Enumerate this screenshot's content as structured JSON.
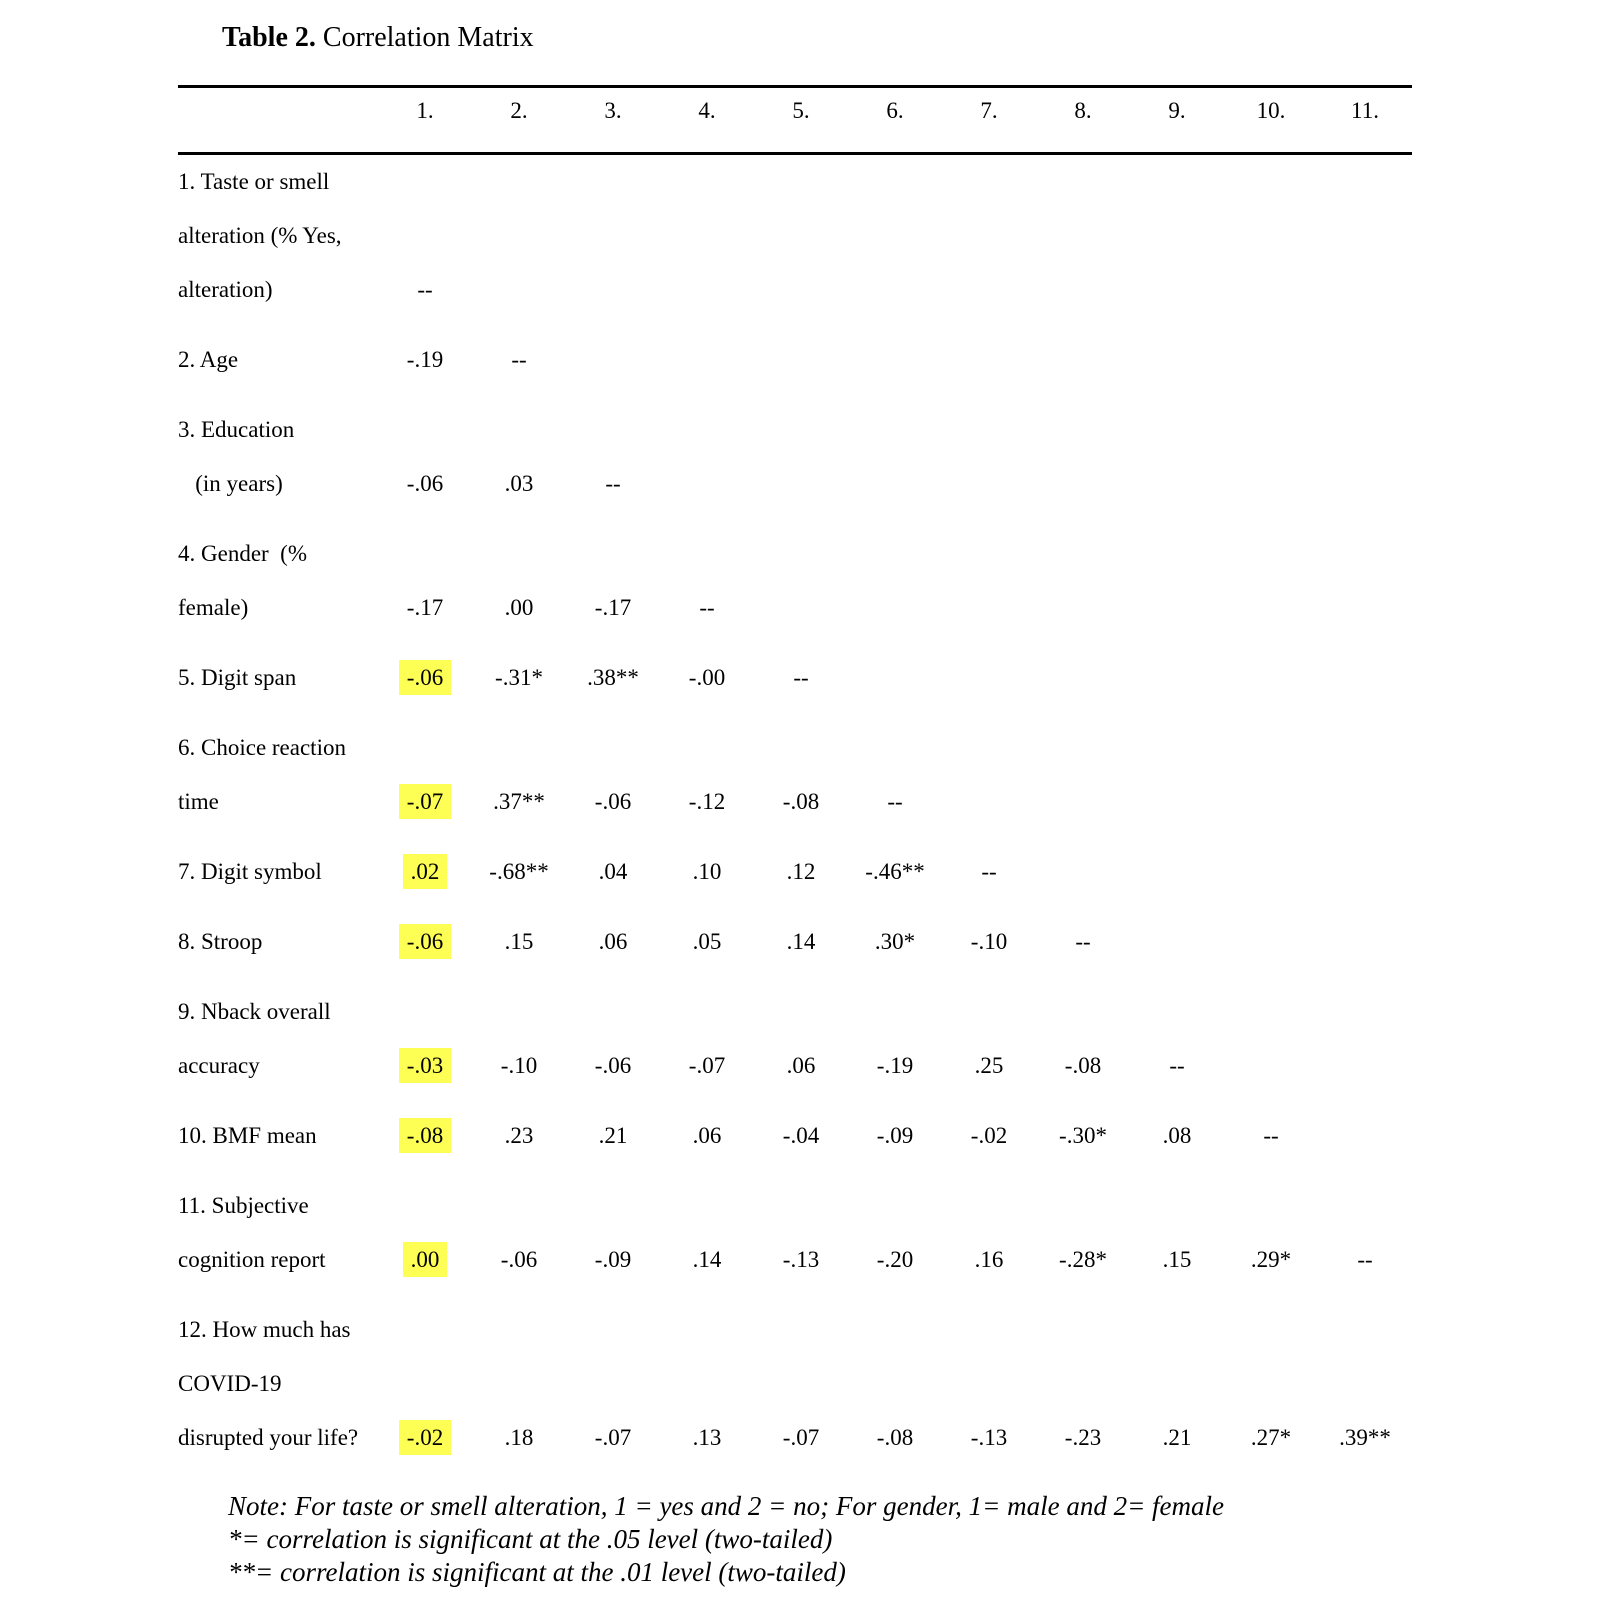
{
  "title": {
    "label": "Table 2.",
    "text": " Correlation Matrix"
  },
  "table": {
    "header": [
      "1.",
      "2.",
      "3.",
      "4.",
      "5.",
      "6.",
      "7.",
      "8.",
      "9.",
      "10.",
      "11."
    ],
    "rows": [
      {
        "label_lines": [
          "1. Taste or smell",
          "alteration (% Yes,",
          "alteration)"
        ],
        "values": [
          "--"
        ],
        "highlight_index": -1
      },
      {
        "label_lines": [
          "2. Age"
        ],
        "values": [
          "-.19",
          "--"
        ],
        "highlight_index": -1
      },
      {
        "label_lines": [
          "3. Education",
          "   (in years)"
        ],
        "values": [
          "-.06",
          ".03",
          "--"
        ],
        "highlight_index": -1
      },
      {
        "label_lines": [
          "4. Gender  (%",
          "female)"
        ],
        "values": [
          "-.17",
          ".00",
          "-.17",
          "--"
        ],
        "highlight_index": -1
      },
      {
        "label_lines": [
          "5. Digit span"
        ],
        "values": [
          "-.06",
          "-.31*",
          ".38**",
          "-.00",
          "--"
        ],
        "highlight_index": 0
      },
      {
        "label_lines": [
          "6. Choice reaction",
          "time"
        ],
        "values": [
          "-.07",
          ".37**",
          "-.06",
          "-.12",
          "-.08",
          "--"
        ],
        "highlight_index": 0
      },
      {
        "label_lines": [
          "7. Digit symbol"
        ],
        "values": [
          ".02",
          "-.68**",
          ".04",
          ".10",
          ".12",
          "-.46**",
          "--"
        ],
        "highlight_index": 0
      },
      {
        "label_lines": [
          "8. Stroop"
        ],
        "values": [
          "-.06",
          ".15",
          ".06",
          ".05",
          ".14",
          ".30*",
          "-.10",
          "--"
        ],
        "highlight_index": 0
      },
      {
        "label_lines": [
          "9. Nback overall",
          "accuracy"
        ],
        "values": [
          "-.03",
          "-.10",
          "-.06",
          "-.07",
          ".06",
          "-.19",
          ".25",
          "-.08",
          "--"
        ],
        "highlight_index": 0
      },
      {
        "label_lines": [
          "10. BMF mean"
        ],
        "values": [
          "-.08",
          ".23",
          ".21",
          ".06",
          "-.04",
          "-.09",
          "-.02",
          "-.30*",
          ".08",
          "--"
        ],
        "highlight_index": 0
      },
      {
        "label_lines": [
          "11. Subjective",
          "cognition report"
        ],
        "values": [
          ".00",
          "-.06",
          "-.09",
          ".14",
          "-.13",
          "-.20",
          ".16",
          "-.28*",
          ".15",
          ".29*",
          "--"
        ],
        "highlight_index": 0
      },
      {
        "label_lines": [
          "12. How much has",
          "COVID-19",
          "disrupted your life?"
        ],
        "values": [
          "-.02",
          ".18",
          "-.07",
          ".13",
          "-.07",
          "-.08",
          "-.13",
          "-.23",
          ".21",
          ".27*",
          ".39**"
        ],
        "highlight_index": 0
      }
    ]
  },
  "note": {
    "line1": "Note: For taste or smell alteration, 1 = yes and 2 = no; For gender, 1= male and 2= female",
    "line2": "*= correlation is significant at the .05 level (two-tailed)",
    "line3": "**= correlation is significant at the .01 level (two-tailed)"
  },
  "colors": {
    "highlight": "#feff54",
    "text": "#000000",
    "rule": "#000000"
  }
}
